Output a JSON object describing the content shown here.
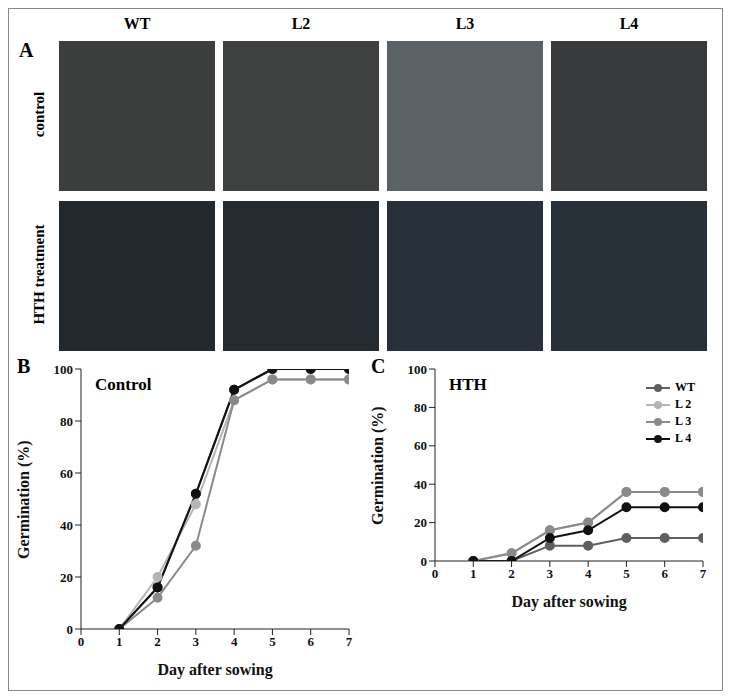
{
  "panel_a": {
    "panel": "A",
    "columns": [
      "WT",
      "L2",
      "L3",
      "L4"
    ],
    "rows": [
      "control",
      "HTH treatment"
    ]
  },
  "chart_data": [
    {
      "type": "line",
      "panel": "B",
      "title": "Control",
      "x_label": "Day after sowing",
      "y_label": "Germination (%)",
      "x": [
        1,
        2,
        3,
        4,
        5,
        6,
        7
      ],
      "series": [
        {
          "name": "WT",
          "color": "#5f5f5f",
          "values": [
            0,
            16,
            52,
            92,
            100,
            100,
            100
          ]
        },
        {
          "name": "L 2",
          "color": "#b5b5b5",
          "values": [
            0,
            20,
            48,
            88,
            96,
            96,
            96
          ]
        },
        {
          "name": "L 3",
          "color": "#8a8a8a",
          "values": [
            0,
            12,
            32,
            88,
            96,
            96,
            96
          ]
        },
        {
          "name": "L 4",
          "color": "#111111",
          "values": [
            0,
            16,
            52,
            92,
            100,
            100,
            100
          ]
        }
      ],
      "xlim": [
        0,
        7
      ],
      "xticks": [
        0,
        1,
        2,
        3,
        4,
        5,
        6,
        7
      ],
      "ylim": [
        0,
        100
      ],
      "yticks": [
        0,
        20,
        40,
        60,
        80,
        100
      ],
      "marker": "circle"
    },
    {
      "type": "line",
      "panel": "C",
      "title": "HTH",
      "x_label": "Day after sowing",
      "y_label": "Germination (%)",
      "x": [
        1,
        2,
        3,
        4,
        5,
        6,
        7
      ],
      "series": [
        {
          "name": "WT",
          "color": "#5f5f5f",
          "values": [
            0,
            0,
            8,
            8,
            12,
            12,
            12
          ]
        },
        {
          "name": "L 2",
          "color": "#b5b5b5",
          "values": [
            0,
            4,
            16,
            20,
            36,
            36,
            36
          ]
        },
        {
          "name": "L 3",
          "color": "#8a8a8a",
          "values": [
            0,
            4,
            16,
            20,
            36,
            36,
            36
          ]
        },
        {
          "name": "L 4",
          "color": "#111111",
          "values": [
            0,
            0,
            12,
            16,
            28,
            28,
            28
          ]
        }
      ],
      "xlim": [
        0,
        7
      ],
      "xticks": [
        0,
        1,
        2,
        3,
        4,
        5,
        6,
        7
      ],
      "ylim": [
        0,
        100
      ],
      "yticks": [
        0,
        20,
        40,
        60,
        80,
        100
      ],
      "legend": "upper right",
      "marker": "circle"
    }
  ]
}
